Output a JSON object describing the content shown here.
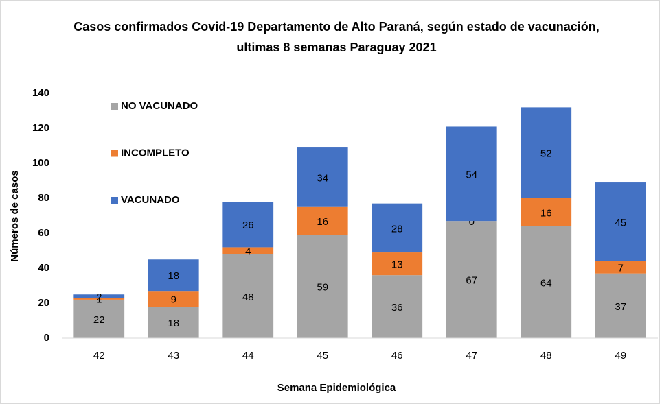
{
  "chart_data": {
    "type": "stacked_bar",
    "title": [
      "Casos confirmados Covid-19 Departamento de Alto Paraná, según estado de vacunación,",
      "ultimas 8 semanas Paraguay 2021"
    ],
    "x_label": "Semana Epidemiológica",
    "y_label": "Números de casos",
    "categories": [
      "42",
      "43",
      "44",
      "45",
      "46",
      "47",
      "48",
      "49"
    ],
    "series": [
      {
        "name": "NO VACUNADO",
        "color": "#a5a5a5",
        "values": [
          22,
          18,
          48,
          59,
          36,
          67,
          64,
          37
        ]
      },
      {
        "name": "INCOMPLETO",
        "color": "#ed7d31",
        "values": [
          1,
          9,
          4,
          16,
          13,
          0,
          16,
          7
        ]
      },
      {
        "name": "VACUNADO",
        "color": "#4472c4",
        "values": [
          2,
          18,
          26,
          34,
          28,
          54,
          52,
          45
        ]
      }
    ],
    "ylim": [
      0,
      140
    ],
    "yticks": [
      0,
      20,
      40,
      60,
      80,
      100,
      120,
      140
    ],
    "grid": false,
    "legend": "upper-left"
  }
}
